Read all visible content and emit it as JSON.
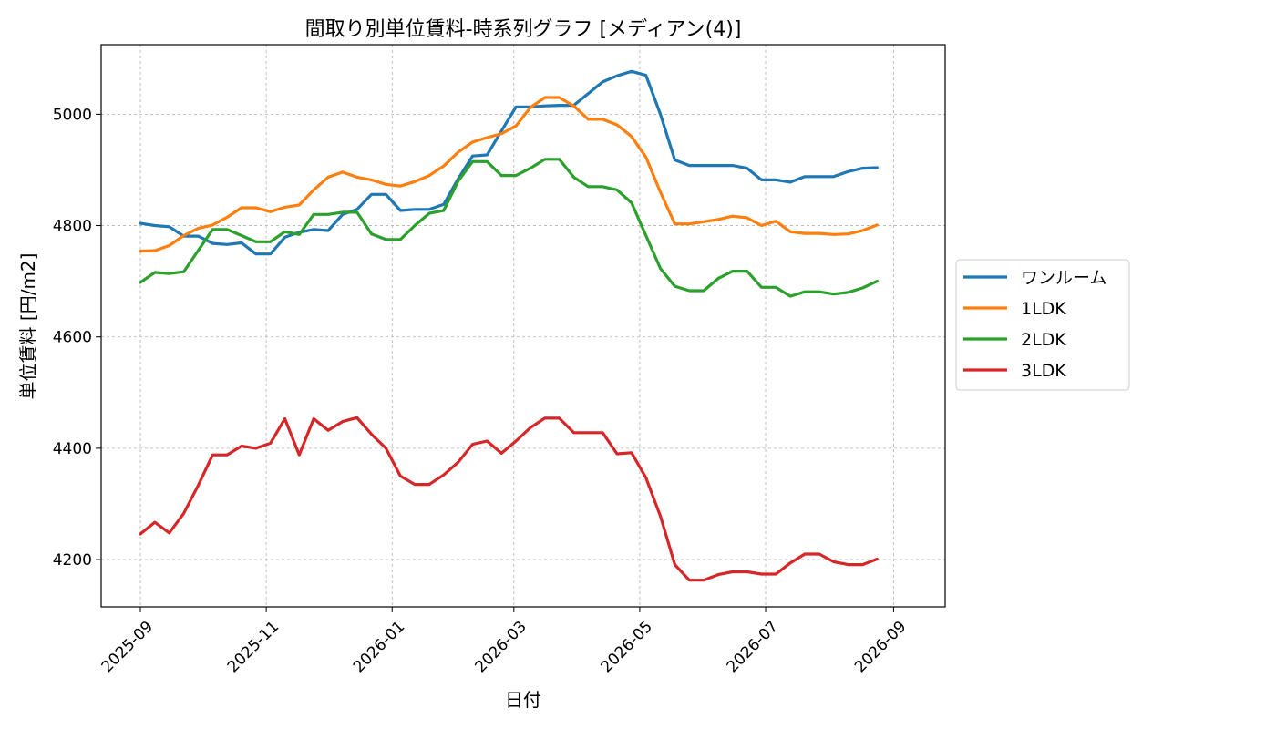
{
  "chart_data": {
    "type": "line",
    "title": "間取り別単位賃料-時系列グラフ [メディアン(4)]",
    "xlabel": "日付",
    "ylabel": "単位賃料 [円/m2]",
    "x_ticks": [
      "2025-09",
      "2025-11",
      "2026-01",
      "2026-03",
      "2026-05",
      "2026-07",
      "2026-09"
    ],
    "y_ticks": [
      4200,
      4400,
      4600,
      4800,
      5000
    ],
    "xlim": [
      "2025-08-13",
      "2026-09-26"
    ],
    "ylim": [
      4115,
      5125
    ],
    "grid": true,
    "legend_position": "center-right",
    "x": [
      "2025-09-01",
      "2025-09-08",
      "2025-09-15",
      "2025-09-22",
      "2025-09-29",
      "2025-10-06",
      "2025-10-13",
      "2025-10-20",
      "2025-10-27",
      "2025-11-03",
      "2025-11-10",
      "2025-11-17",
      "2025-11-24",
      "2025-12-01",
      "2025-12-08",
      "2025-12-15",
      "2025-12-22",
      "2025-12-29",
      "2026-01-05",
      "2026-01-12",
      "2026-01-19",
      "2026-01-26",
      "2026-02-02",
      "2026-02-09",
      "2026-02-16",
      "2026-02-23",
      "2026-03-02",
      "2026-03-09",
      "2026-03-16",
      "2026-03-23",
      "2026-03-30",
      "2026-04-06",
      "2026-04-13",
      "2026-04-20",
      "2026-04-27",
      "2026-05-04",
      "2026-05-11",
      "2026-05-18",
      "2026-05-25",
      "2026-06-01",
      "2026-06-08",
      "2026-06-15",
      "2026-06-22",
      "2026-06-29",
      "2026-07-06",
      "2026-07-13",
      "2026-07-20",
      "2026-07-27",
      "2026-08-03",
      "2026-08-10",
      "2026-08-17",
      "2026-08-24"
    ],
    "series": [
      {
        "name": "ワンルーム",
        "color": "#1f77b4",
        "values": [
          4804,
          4800,
          4798,
          4781,
          4781,
          4768,
          4766,
          4769,
          4749,
          4749,
          4779,
          4788,
          4793,
          4791,
          4820,
          4829,
          4856,
          4856,
          4827,
          4829,
          4829,
          4838,
          4884,
          4925,
          4927,
          4970,
          5013,
          5013,
          5015,
          5016,
          5016,
          5037,
          5058,
          5069,
          5077,
          5070,
          5000,
          4918,
          4908,
          4908,
          4908,
          4908,
          4903,
          4882,
          4882,
          4878,
          4888,
          4888,
          4888,
          4897,
          4903,
          4904
        ]
      },
      {
        "name": "1LDK",
        "color": "#ff7f0e",
        "values": [
          4754,
          4755,
          4764,
          4782,
          4795,
          4801,
          4815,
          4832,
          4832,
          4825,
          4833,
          4837,
          4864,
          4887,
          4896,
          4887,
          4882,
          4874,
          4871,
          4879,
          4890,
          4907,
          4932,
          4950,
          4958,
          4965,
          4979,
          5012,
          5030,
          5030,
          5015,
          4991,
          4991,
          4981,
          4960,
          4923,
          4860,
          4803,
          4803,
          4807,
          4811,
          4817,
          4814,
          4800,
          4808,
          4789,
          4786,
          4786,
          4784,
          4785,
          4791,
          4801
        ]
      },
      {
        "name": "2LDK",
        "color": "#2ca02c",
        "values": [
          4698,
          4716,
          4714,
          4717,
          4755,
          4793,
          4793,
          4782,
          4771,
          4771,
          4789,
          4784,
          4820,
          4820,
          4824,
          4824,
          4785,
          4775,
          4775,
          4800,
          4822,
          4827,
          4880,
          4915,
          4915,
          4890,
          4890,
          4903,
          4919,
          4919,
          4887,
          4870,
          4870,
          4864,
          4841,
          4782,
          4723,
          4691,
          4683,
          4683,
          4705,
          4718,
          4718,
          4689,
          4689,
          4673,
          4681,
          4681,
          4677,
          4680,
          4688,
          4700
        ]
      },
      {
        "name": "3LDK",
        "color": "#d62728",
        "values": [
          4246,
          4267,
          4248,
          4283,
          4333,
          4388,
          4388,
          4404,
          4400,
          4409,
          4453,
          4388,
          4453,
          4432,
          4448,
          4455,
          4425,
          4400,
          4350,
          4335,
          4335,
          4352,
          4375,
          4407,
          4413,
          4391,
          4413,
          4437,
          4454,
          4454,
          4428,
          4428,
          4428,
          4390,
          4392,
          4347,
          4278,
          4191,
          4163,
          4163,
          4173,
          4178,
          4178,
          4174,
          4174,
          4194,
          4210,
          4210,
          4196,
          4191,
          4191,
          4201
        ]
      }
    ]
  }
}
